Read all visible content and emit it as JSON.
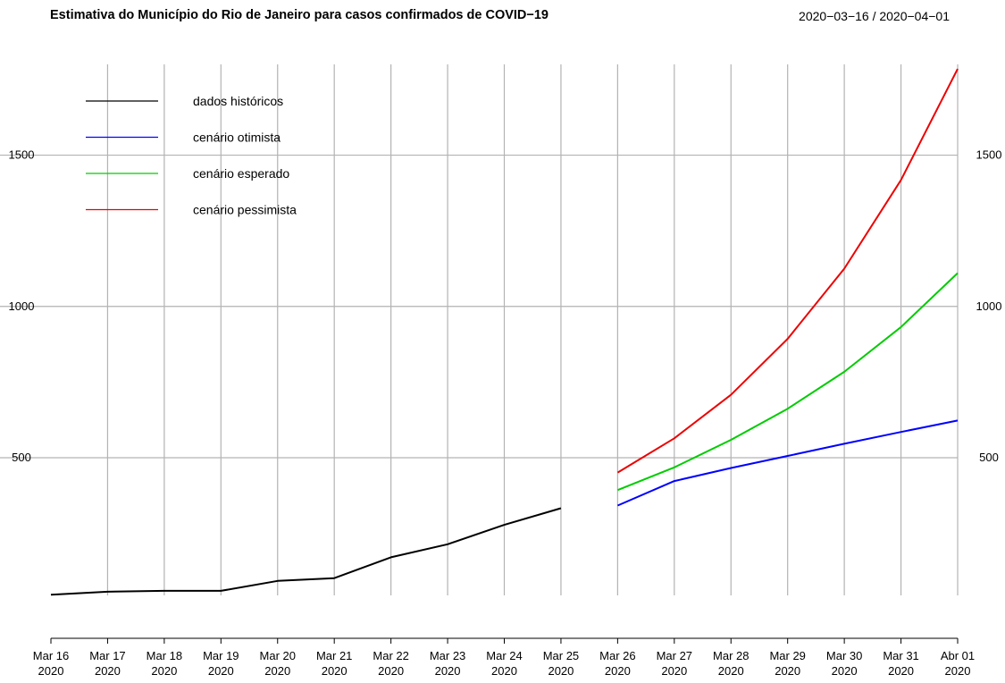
{
  "header": {
    "title": "Estimativa do Município do Rio de Janeiro para casos confirmados de COVID−19",
    "date_range": "2020−03−16 / 2020−04−01"
  },
  "chart_data": {
    "type": "line",
    "title": "Estimativa do Município do Rio de Janeiro para casos confirmados de COVID−19",
    "subtitle": "2020−03−16 / 2020−04−01",
    "xlabel": "",
    "ylabel": "",
    "x_ticks": [
      [
        "Mar 16",
        "2020"
      ],
      [
        "Mar 17",
        "2020"
      ],
      [
        "Mar 18",
        "2020"
      ],
      [
        "Mar 19",
        "2020"
      ],
      [
        "Mar 20",
        "2020"
      ],
      [
        "Mar 21",
        "2020"
      ],
      [
        "Mar 22",
        "2020"
      ],
      [
        "Mar 23",
        "2020"
      ],
      [
        "Mar 24",
        "2020"
      ],
      [
        "Mar 25",
        "2020"
      ],
      [
        "Mar 26",
        "2020"
      ],
      [
        "Mar 27",
        "2020"
      ],
      [
        "Mar 28",
        "2020"
      ],
      [
        "Mar 29",
        "2020"
      ],
      [
        "Mar 30",
        "2020"
      ],
      [
        "Mar 31",
        "2020"
      ],
      [
        "Abr 01",
        "2020"
      ]
    ],
    "y_ticks": [
      500,
      1000,
      1500
    ],
    "ylim": [
      45,
      1800
    ],
    "grid": true,
    "legend_position": "top-left",
    "series": [
      {
        "name": "dados históricos",
        "color": "#000000",
        "x": [
          "2020-03-16",
          "2020-03-17",
          "2020-03-18",
          "2020-03-19",
          "2020-03-20",
          "2020-03-21",
          "2020-03-22",
          "2020-03-23",
          "2020-03-24",
          "2020-03-25"
        ],
        "values": [
          47,
          57,
          60,
          60,
          93,
          102,
          171,
          214,
          278,
          333
        ]
      },
      {
        "name": "cenário otimista",
        "color": "#0000ff",
        "x": [
          "2020-03-26",
          "2020-03-27",
          "2020-03-28",
          "2020-03-29",
          "2020-03-30",
          "2020-03-31",
          "2020-04-01"
        ],
        "values": [
          342,
          423,
          466,
          506,
          546,
          585,
          623
        ]
      },
      {
        "name": "cenário esperado",
        "color": "#00cc00",
        "x": [
          "2020-03-26",
          "2020-03-27",
          "2020-03-28",
          "2020-03-29",
          "2020-03-30",
          "2020-03-31",
          "2020-04-01"
        ],
        "values": [
          393,
          468,
          559,
          662,
          784,
          932,
          1110
        ]
      },
      {
        "name": "cenário pessimista",
        "color": "#ee0000",
        "x": [
          "2020-03-26",
          "2020-03-27",
          "2020-03-28",
          "2020-03-29",
          "2020-03-30",
          "2020-03-31",
          "2020-04-01"
        ],
        "values": [
          451,
          564,
          708,
          893,
          1125,
          1418,
          1785
        ]
      }
    ]
  }
}
